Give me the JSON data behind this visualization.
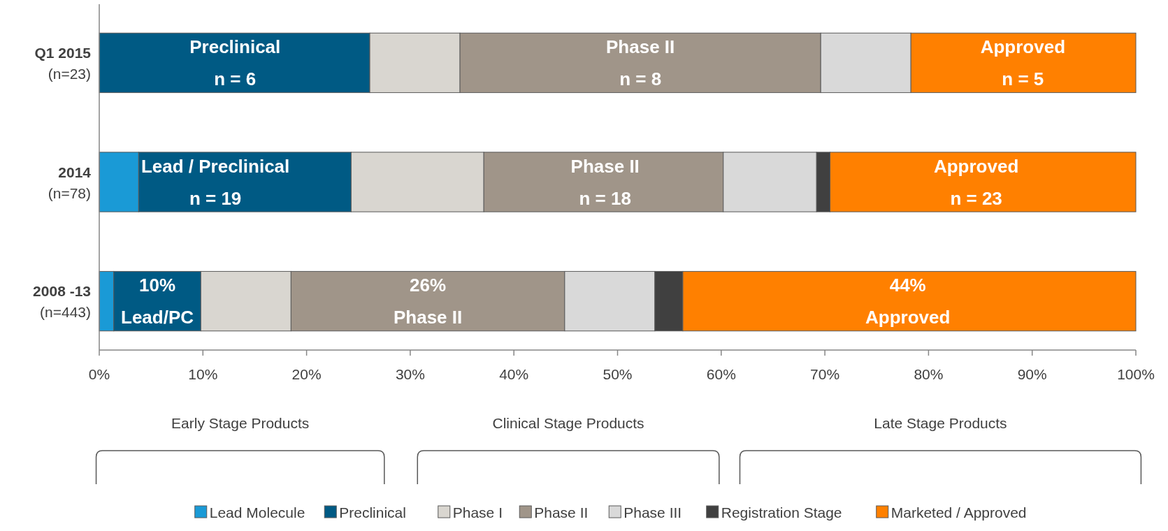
{
  "chart_data": {
    "type": "bar",
    "orientation": "horizontal",
    "stacked": true,
    "categories": [
      "Q1 2015\n(n=23)",
      "2014\n(n=78)",
      "2008 -13\n(n=443)"
    ],
    "series": [
      {
        "name": "Lead Molecule",
        "color": "#1a9ad6",
        "values": [
          0,
          3.8,
          1.4
        ]
      },
      {
        "name": "Preclinical",
        "color": "#005a84",
        "values": [
          26.1,
          20.5,
          8.4
        ]
      },
      {
        "name": "Phase I",
        "color": "#d9d6d0",
        "values": [
          8.7,
          12.8,
          8.7
        ]
      },
      {
        "name": "Phase II",
        "color": "#a09589",
        "values": [
          34.8,
          23.1,
          26.4
        ]
      },
      {
        "name": "Phase III",
        "color": "#d9d9d9",
        "values": [
          8.7,
          9.0,
          8.7
        ]
      },
      {
        "name": "Registration Stage",
        "color": "#404040",
        "values": [
          0,
          1.3,
          2.7
        ]
      },
      {
        "name": "Marketed / Approved",
        "color": "#ff8000",
        "values": [
          21.7,
          29.5,
          43.7
        ]
      }
    ],
    "xlim": [
      0,
      100
    ],
    "xticks": [
      {
        "value": 0,
        "label": "0%"
      },
      {
        "value": 10,
        "label": "10%"
      },
      {
        "value": 20,
        "label": "20%"
      },
      {
        "value": 30,
        "label": "30%"
      },
      {
        "value": 40,
        "label": "40%"
      },
      {
        "value": 50,
        "label": "50%"
      },
      {
        "value": 60,
        "label": "60%"
      },
      {
        "value": 70,
        "label": "70%"
      },
      {
        "value": 80,
        "label": "80%"
      },
      {
        "value": 90,
        "label": "90%"
      },
      {
        "value": 100,
        "label": "100%"
      }
    ],
    "annotations": [
      "Early Stage Products",
      "Clinical Stage Products",
      "Late Stage Products",
      "Preclinical\nn = 6",
      "Phase II\nn = 8",
      "Approved\nn = 5",
      "Lead / Preclinical\nn = 19",
      "Phase II\nn = 18",
      "Approved\nn = 23",
      "10%\nLead/PC",
      "26%\nPhase II",
      "44%\nApproved"
    ],
    "grid": false,
    "legend": "bottom"
  }
}
